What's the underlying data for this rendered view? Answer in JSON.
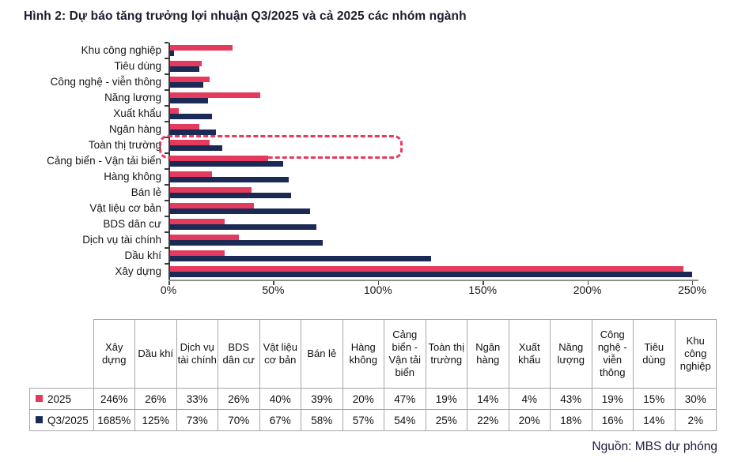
{
  "title": "Hình 2: Dự báo tăng trưởng lợi nhuận Q3/2025 và cả 2025 các nhóm ngành",
  "source": "Nguồn: MBS dự phóng",
  "colors": {
    "series_2025": "#e43a5d",
    "series_q3_2025": "#1b2a55",
    "highlight_box": "#e43a5d",
    "table_border": "#a6a6a6"
  },
  "chart_data": {
    "type": "bar",
    "orientation": "horizontal",
    "title": "",
    "xlabel": "",
    "ylabel": "",
    "xlim": [
      0,
      250
    ],
    "x_ticks": [
      "0%",
      "50%",
      "100%",
      "150%",
      "200%",
      "250%"
    ],
    "grid": false,
    "legend_position": "table-below",
    "highlighted_category": "Toàn thị trường",
    "highlight_style": "red-dashed-rounded-box",
    "categories": [
      "Khu công nghiệp",
      "Tiêu dùng",
      "Công nghệ - viễn thông",
      "Năng lượng",
      "Xuất khẩu",
      "Ngân hàng",
      "Toàn thị trường",
      "Cảng biển - Vận tải biển",
      "Hàng không",
      "Bán lẻ",
      "Vật liệu cơ bản",
      "BDS dân cư",
      "Dịch vụ tài chính",
      "Dầu khí",
      "Xây dựng"
    ],
    "series": [
      {
        "name": "2025",
        "color": "#e43a5d",
        "values": [
          30,
          15,
          19,
          43,
          4,
          14,
          19,
          47,
          20,
          39,
          40,
          26,
          33,
          26,
          246
        ]
      },
      {
        "name": "Q3/2025",
        "color": "#1b2a55",
        "values": [
          2,
          14,
          16,
          18,
          20,
          22,
          25,
          54,
          57,
          58,
          67,
          70,
          73,
          125,
          1685
        ]
      }
    ],
    "note": "Bars are clipped at axis max 250%; Q3/2025 Xây dựng (1685%) is drawn capped at 250%"
  },
  "table": {
    "columns": [
      "Xây dựng",
      "Dầu khí",
      "Dịch vụ tài chính",
      "BDS dân cư",
      "Vật liệu cơ bản",
      "Bán lẻ",
      "Hàng không",
      "Cảng biển - Vận tải biển",
      "Toàn thị trường",
      "Ngân hàng",
      "Xuất khẩu",
      "Năng lượng",
      "Công nghệ - viễn thông",
      "Tiêu dùng",
      "Khu công nghiệp"
    ],
    "rows": [
      {
        "label": "2025",
        "marker_color": "#e43a5d",
        "values": [
          "246%",
          "26%",
          "33%",
          "26%",
          "40%",
          "39%",
          "20%",
          "47%",
          "19%",
          "14%",
          "4%",
          "43%",
          "19%",
          "15%",
          "30%"
        ]
      },
      {
        "label": "Q3/2025",
        "marker_color": "#1b2a55",
        "values": [
          "1685%",
          "125%",
          "73%",
          "70%",
          "67%",
          "58%",
          "57%",
          "54%",
          "25%",
          "22%",
          "20%",
          "18%",
          "16%",
          "14%",
          "2%"
        ]
      }
    ]
  }
}
